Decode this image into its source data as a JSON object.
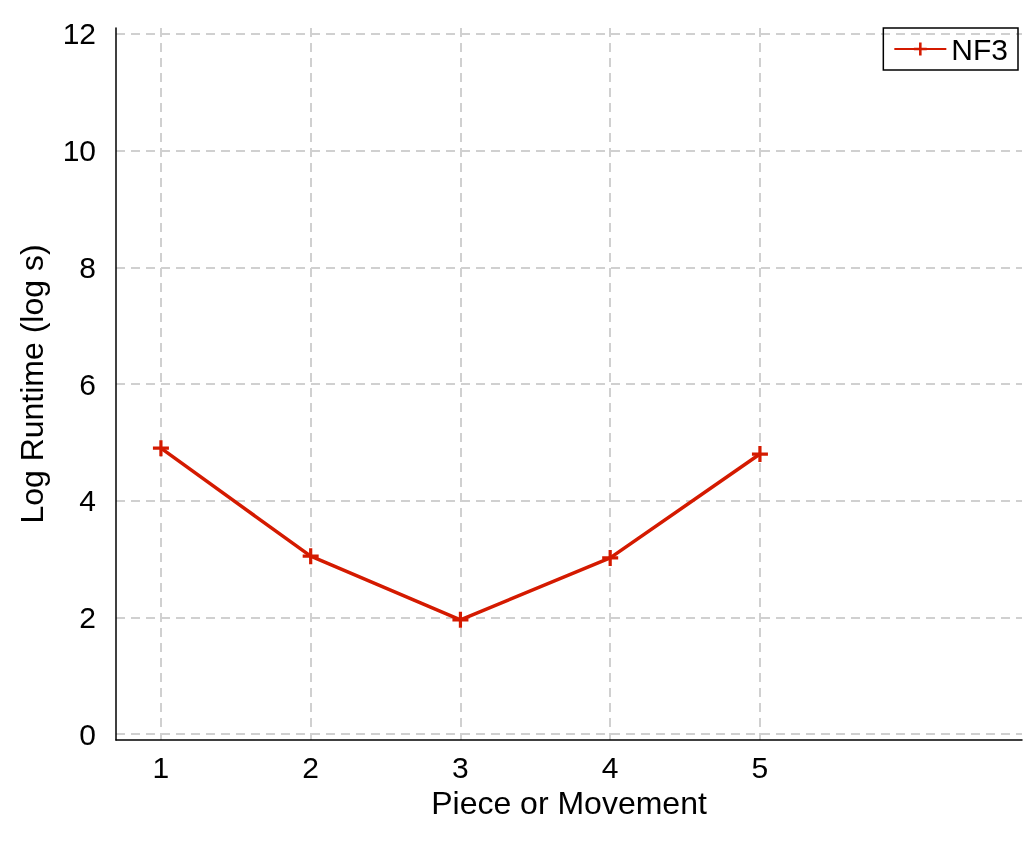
{
  "chart_data": {
    "type": "line",
    "xlabel": "Piece or Movement",
    "ylabel": "Log Runtime (log s)",
    "x": [
      1,
      2,
      3,
      4,
      5
    ],
    "series": [
      {
        "name": "NF3",
        "color": "#d41a00",
        "values": [
          4.9,
          3.05,
          1.96,
          3.02,
          4.8
        ]
      }
    ],
    "xlim": [
      0.7,
      6.75
    ],
    "xticks": [
      1,
      2,
      3,
      4,
      5
    ],
    "ylim": [
      -0.1,
      12.1
    ],
    "yticks": [
      0,
      2,
      4,
      6,
      8,
      10,
      12
    ],
    "grid": true,
    "legend": "top right",
    "marker": "cross",
    "line_style": "solid"
  }
}
